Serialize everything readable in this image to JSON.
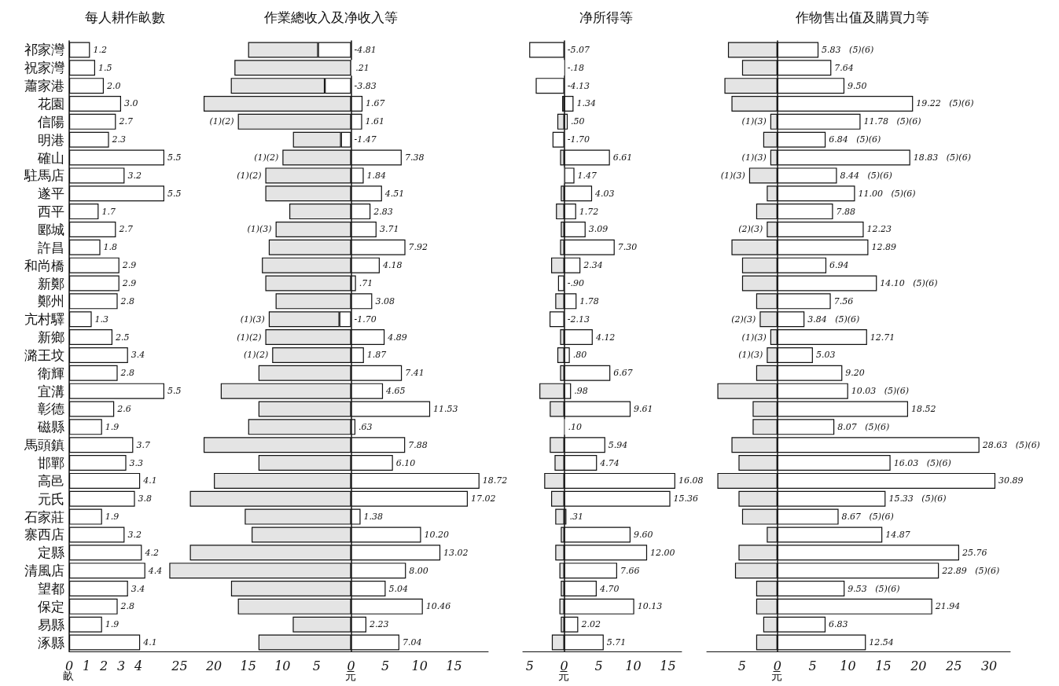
{
  "chart_data": [
    {
      "type": "bar",
      "orientation": "horizontal",
      "title": "每人耕作畝數",
      "xlabel": "畝",
      "categories": [
        "祁家灣",
        "祝家灣",
        "蕭家港",
        "花園",
        "信陽",
        "明港",
        "確山",
        "駐馬店",
        "遂平",
        "西平",
        "郾城",
        "許昌",
        "和尚橋",
        "新鄭",
        "鄭州",
        "亢村驛",
        "新鄉",
        "潞王坟",
        "衛輝",
        "宜溝",
        "彰德",
        "磁縣",
        "馬頭鎮",
        "邯鄲",
        "高邑",
        "元氏",
        "石家莊",
        "寨西店",
        "定縣",
        "清風店",
        "望都",
        "保定",
        "易縣",
        "涿縣"
      ],
      "values": [
        1.2,
        1.5,
        2.0,
        3.0,
        2.7,
        2.3,
        5.5,
        3.2,
        5.5,
        1.7,
        2.7,
        1.8,
        2.9,
        2.9,
        2.8,
        1.3,
        2.5,
        3.4,
        2.8,
        5.5,
        2.6,
        1.9,
        3.7,
        3.3,
        4.1,
        3.8,
        1.9,
        3.2,
        4.2,
        4.4,
        3.4,
        2.8,
        1.9,
        4.1
      ],
      "value_labels": [
        "1.2",
        "1.5",
        "2.0",
        "3.0",
        "2.7",
        "2.3",
        "5.5",
        "3.2",
        "5.5",
        "1.7",
        "2.7",
        "1.8",
        "2.9",
        "2.9",
        "2.8",
        "1.3",
        "2.5",
        "3.4",
        "2.8",
        "5.5",
        "2.6",
        "1.9",
        "3.7",
        "3.3",
        "4.1",
        "3.8",
        "1.9",
        "3.2",
        "4.2",
        "4.4",
        "3.4",
        "2.8",
        "1.9",
        "4.1"
      ],
      "color": "#ffffff",
      "xlim": [
        0,
        6
      ],
      "xticks": [
        0,
        1,
        2,
        3,
        4
      ]
    },
    {
      "type": "bar",
      "orientation": "horizontal",
      "stacked": true,
      "title": "作業總收入及净收入等",
      "xlabel": "元",
      "tick_labels": "x",
      "categories": [
        "祁家灣",
        "祝家灣",
        "蕭家港",
        "花園",
        "信陽",
        "明港",
        "確山",
        "駐馬店",
        "遂平",
        "西平",
        "郾城",
        "許昌",
        "和尚橋",
        "新鄭",
        "鄭州",
        "亢村驛",
        "新鄉",
        "潞王坟",
        "衛輝",
        "宜溝",
        "彰德",
        "磁縣",
        "馬頭鎮",
        "邯鄲",
        "高邑",
        "元氏",
        "石家莊",
        "寨西店",
        "定縣",
        "清風店",
        "望都",
        "保定",
        "易縣",
        "涿縣"
      ],
      "series": [
        {
          "color": "#ffffff",
          "values": [
            -4.81,
            0.21,
            -3.83,
            1.67,
            1.61,
            -1.47,
            7.38,
            1.84,
            4.51,
            2.83,
            3.71,
            7.92,
            4.18,
            0.71,
            3.08,
            -1.7,
            4.89,
            1.87,
            7.41,
            4.65,
            11.53,
            0.63,
            7.88,
            6.1,
            18.72,
            17.02,
            1.38,
            10.2,
            13.02,
            8.0,
            5.04,
            10.46,
            2.23,
            7.04
          ],
          "value_labels": [
            "-4.81",
            ".21",
            "-3.83",
            "1.67",
            "1.61",
            "-1.47",
            "7.38",
            "1.84",
            "4.51",
            "2.83",
            "3.71",
            "7.92",
            "4.18",
            ".71",
            "3.08",
            "-1.70",
            "4.89",
            "1.87",
            "7.41",
            "4.65",
            "11.53",
            ".63",
            "7.88",
            "6.10",
            "18.72",
            "17.02",
            "1.38",
            "10.20",
            "13.02",
            "8.00",
            "5.04",
            "10.46",
            "2.23",
            "7.04"
          ]
        },
        {
          "color": "#e4e4e4",
          "values": [
            -10.2,
            -17,
            -13.7,
            -21.5,
            -16.5,
            -7.0,
            -10,
            -12.5,
            -12.5,
            -9,
            -11,
            -12,
            -13,
            -12.5,
            -11,
            -10.3,
            -12.5,
            -11.5,
            -13.5,
            -19,
            -13.5,
            -15,
            -21.5,
            -13.5,
            -20,
            -23.5,
            -15.5,
            -14.5,
            -23.5,
            -26.5,
            -17.5,
            -16.5,
            -8.5,
            -13.5
          ]
        }
      ],
      "xlim": [
        -27,
        20
      ],
      "xticks": [
        {
          "value": -25,
          "label": "25"
        },
        {
          "value": -20,
          "label": "20"
        },
        {
          "value": -15,
          "label": "15"
        },
        {
          "value": -10,
          "label": "10"
        },
        {
          "value": -5,
          "label": "5"
        },
        0,
        5,
        10,
        15
      ],
      "annotations": [
        {
          "text": "(1)(2)",
          "x": -16.5,
          "y": "信陽"
        },
        {
          "text": "(1)(2)",
          "x": -10,
          "y": "確山"
        },
        {
          "text": "(1)(2)",
          "x": -12.5,
          "y": "駐馬店"
        },
        {
          "text": "(1)(3)",
          "x": -11,
          "y": "郾城"
        },
        {
          "text": "(1)(3)",
          "x": -12,
          "y": "亢村驛"
        },
        {
          "text": "(1)(2)",
          "x": -12.5,
          "y": "新鄉"
        },
        {
          "text": "(1)(2)",
          "x": -11.5,
          "y": "潞王坟"
        }
      ]
    },
    {
      "type": "bar",
      "orientation": "horizontal",
      "stacked": true,
      "title": "净所得等",
      "xlabel": "元",
      "tick_labels": "x",
      "categories": [
        "祁家灣",
        "祝家灣",
        "蕭家港",
        "花園",
        "信陽",
        "明港",
        "確山",
        "駐馬店",
        "遂平",
        "西平",
        "郾城",
        "許昌",
        "和尚橋",
        "新鄭",
        "鄭州",
        "亢村驛",
        "新鄉",
        "潞王坟",
        "衛輝",
        "宜溝",
        "彰德",
        "磁縣",
        "馬頭鎮",
        "邯鄲",
        "高邑",
        "元氏",
        "石家莊",
        "寨西店",
        "定縣",
        "清風店",
        "望都",
        "保定",
        "易縣",
        "涿縣"
      ],
      "series": [
        {
          "color": "#ffffff",
          "values": [
            -5.07,
            -0.18,
            -4.13,
            1.34,
            0.5,
            -1.7,
            6.61,
            1.47,
            4.03,
            1.72,
            3.09,
            7.3,
            2.34,
            -0.9,
            1.78,
            -2.13,
            4.12,
            0.8,
            6.67,
            0.98,
            9.61,
            0.1,
            5.94,
            4.74,
            16.08,
            15.36,
            0.31,
            9.6,
            12.0,
            7.66,
            4.7,
            10.13,
            2.02,
            5.71
          ],
          "value_labels": [
            "-5.07",
            "-.18",
            "-4.13",
            "1.34",
            ".50",
            "-1.70",
            "6.61",
            "1.47",
            "4.03",
            "1.72",
            "3.09",
            "7.30",
            "2.34",
            "-.90",
            "1.78",
            "-2.13",
            "4.12",
            ".80",
            "6.67",
            ".98",
            "9.61",
            ".10",
            "5.94",
            "4.74",
            "16.08",
            "15.36",
            ".31",
            "9.60",
            "12.00",
            "7.66",
            "4.70",
            "10.13",
            "2.02",
            "5.71"
          ]
        },
        {
          "color": "#e4e4e4",
          "values": [
            null,
            null,
            null,
            -0.3,
            -1.0,
            null,
            -0.6,
            -0.2,
            -0.5,
            -1.2,
            -0.5,
            -0.6,
            -1.9,
            null,
            -1.3,
            null,
            -0.6,
            -1.0,
            -0.6,
            -3.6,
            -2.1,
            null,
            -2.1,
            -1.4,
            -2.9,
            -1.9,
            -1.3,
            -0.5,
            -1.3,
            -0.7,
            -0.5,
            -0.7,
            -0.5,
            -1.8
          ]
        }
      ],
      "xlim": [
        -6,
        17
      ],
      "xticks": [
        {
          "value": -5,
          "label": "5"
        },
        0,
        5,
        10,
        15
      ]
    },
    {
      "type": "bar",
      "orientation": "horizontal",
      "stacked": true,
      "title": "作物售出值及購買力等",
      "xlabel": "元",
      "tick_labels": "x",
      "categories": [
        "祁家灣",
        "祝家灣",
        "蕭家港",
        "花園",
        "信陽",
        "明港",
        "確山",
        "駐馬店",
        "遂平",
        "西平",
        "郾城",
        "許昌",
        "和尚橋",
        "新鄭",
        "鄭州",
        "亢村驛",
        "新鄉",
        "潞王坟",
        "衛輝",
        "宜溝",
        "彰德",
        "磁縣",
        "馬頭鎮",
        "邯鄲",
        "高邑",
        "元氏",
        "石家莊",
        "寨西店",
        "定縣",
        "清風店",
        "望都",
        "保定",
        "易縣",
        "涿縣"
      ],
      "series": [
        {
          "color": "#ffffff",
          "values": [
            5.83,
            7.64,
            9.5,
            19.22,
            11.78,
            6.84,
            18.83,
            8.44,
            11.0,
            7.88,
            12.23,
            12.89,
            6.94,
            14.1,
            7.56,
            3.84,
            12.71,
            5.03,
            9.2,
            10.03,
            18.52,
            8.07,
            28.63,
            16.03,
            30.89,
            15.33,
            8.67,
            14.87,
            25.76,
            22.89,
            9.53,
            21.94,
            6.83,
            12.54
          ],
          "value_labels": [
            "5.83   (5)(6)",
            "7.64",
            "9.50",
            "19.22   (5)(6)",
            "11.78   (5)(6)",
            "6.84   (5)(6)",
            "18.83   (5)(6)",
            "8.44   (5)(6)",
            "11.00   (5)(6)",
            "7.88",
            "12.23",
            "12.89",
            "6.94",
            "14.10   (5)(6)",
            "7.56",
            "3.84   (5)(6)",
            "12.71",
            "5.03",
            "9.20",
            "10.03   (5)(6)",
            "18.52",
            "8.07   (5)(6)",
            "28.63   (5)(6)",
            "16.03   (5)(6)",
            "30.89",
            "15.33   (5)(6)",
            "8.67   (5)(6)",
            "14.87",
            "25.76",
            "22.89   (5)(6)",
            "9.53   (5)(6)",
            "21.94",
            "6.83",
            "12.54"
          ]
        },
        {
          "color": "#e4e4e4",
          "values": [
            -7,
            -5,
            -7.5,
            -6.5,
            -1,
            -2,
            -1,
            -4,
            -1.5,
            -3,
            -1.5,
            -6.5,
            -5,
            -5,
            -3,
            -2.5,
            -1,
            -1.5,
            -3,
            -8.5,
            -3.5,
            -3.5,
            -6.5,
            -5.5,
            -8.5,
            -5.5,
            -5,
            -1.5,
            -5.5,
            -6,
            -3,
            -3,
            -2,
            -3
          ]
        }
      ],
      "xlim": [
        -10,
        33
      ],
      "xticks": [
        {
          "value": -5,
          "label": "5"
        },
        0,
        5,
        10,
        15,
        20,
        25,
        30
      ],
      "annotations": [
        {
          "text": "(1)(3)",
          "x": -1,
          "y": "信陽"
        },
        {
          "text": "(1)(3)",
          "x": -1,
          "y": "確山"
        },
        {
          "text": "(1)(3)",
          "x": -4,
          "y": "駐馬店"
        },
        {
          "text": "(2)(3)",
          "x": -1.5,
          "y": "郾城"
        },
        {
          "text": "(2)(3)",
          "x": -2.5,
          "y": "亢村驛"
        },
        {
          "text": "(1)(3)",
          "x": -1,
          "y": "新鄉"
        },
        {
          "text": "(1)(3)",
          "x": -1.5,
          "y": "潞王坟"
        }
      ]
    }
  ]
}
